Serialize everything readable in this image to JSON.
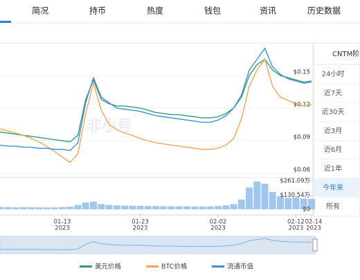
{
  "tabs": [
    "简况",
    "持币",
    "热度",
    "钱包",
    "资讯",
    "历史数据"
  ],
  "range_panel": {
    "title": "CNTM阶",
    "buttons": [
      "24小时",
      "近7天",
      "近30天",
      "近3月",
      "近6月",
      "近1年",
      "今年来",
      "所有"
    ],
    "active": 6
  },
  "watermark": "非小号",
  "chart_data": [
    {
      "type": "line",
      "year": "2023",
      "categories": [
        null,
        null,
        null,
        null,
        null,
        null,
        null,
        null,
        "01-13",
        null,
        null,
        null,
        null,
        null,
        null,
        null,
        null,
        null,
        "01-23",
        null,
        null,
        null,
        null,
        null,
        null,
        null,
        null,
        null,
        "02-02",
        null,
        null,
        null,
        null,
        null,
        null,
        null,
        null,
        null,
        "02-12",
        null,
        "02-14"
      ],
      "ylim": [
        0.06,
        0.18
      ],
      "yticks": [
        {
          "value": 0.06,
          "label": "$0.06"
        },
        {
          "value": 0.09,
          "label": "$0.09"
        },
        {
          "value": 0.12,
          "label": "$0.12"
        },
        {
          "value": 0.15,
          "label": "$0.15"
        }
      ],
      "grid": true,
      "legend": "bottom",
      "series": [
        {
          "name": "美元价格",
          "color": "#3a9a78",
          "values": [
            0.098,
            0.097,
            0.096,
            0.095,
            0.094,
            0.093,
            0.092,
            0.091,
            0.09,
            0.089,
            0.095,
            0.128,
            0.146,
            0.128,
            0.124,
            0.122,
            0.122,
            0.121,
            0.12,
            0.118,
            0.116,
            0.115,
            0.114,
            0.114,
            0.113,
            0.112,
            0.111,
            0.111,
            0.112,
            0.115,
            0.12,
            0.13,
            0.15,
            0.16,
            0.165,
            0.155,
            0.15,
            0.148,
            0.146,
            0.144,
            0.145
          ]
        },
        {
          "name": "BTC价格",
          "color": "#f2a35c",
          "values": [
            0.101,
            0.099,
            0.097,
            0.095,
            0.092,
            0.089,
            0.085,
            0.08,
            0.075,
            0.07,
            0.078,
            0.115,
            0.143,
            0.118,
            0.105,
            0.1,
            0.097,
            0.095,
            0.092,
            0.09,
            0.088,
            0.087,
            0.086,
            0.085,
            0.084,
            0.083,
            0.082,
            0.082,
            0.083,
            0.086,
            0.092,
            0.11,
            0.14,
            0.155,
            0.165,
            0.14,
            0.13,
            0.127,
            0.124,
            0.122,
            0.123
          ]
        },
        {
          "name": "流通市值",
          "color": "#3d8fd6",
          "values": [
            0.086,
            0.085,
            0.085,
            0.084,
            0.084,
            0.083,
            0.083,
            0.082,
            0.082,
            0.081,
            0.088,
            0.125,
            0.148,
            0.13,
            0.125,
            0.12,
            0.119,
            0.118,
            0.117,
            0.115,
            0.113,
            0.112,
            0.111,
            0.11,
            0.109,
            0.108,
            0.107,
            0.107,
            0.109,
            0.113,
            0.12,
            0.132,
            0.155,
            0.165,
            0.175,
            0.158,
            0.151,
            0.147,
            0.145,
            0.143,
            0.144
          ]
        }
      ]
    },
    {
      "type": "bar",
      "color": "#8bb9ea",
      "ylim": [
        0,
        261.09
      ],
      "yticks": [
        {
          "value": 0,
          "label": "$0"
        },
        {
          "value": 130.54,
          "label": "$130.54万"
        },
        {
          "value": 261.09,
          "label": "$261.09万"
        }
      ],
      "values": [
        22,
        20,
        18,
        20,
        19,
        18,
        17,
        18,
        20,
        24,
        40,
        62,
        70,
        48,
        40,
        36,
        34,
        33,
        32,
        30,
        30,
        29,
        28,
        28,
        27,
        26,
        26,
        27,
        30,
        36,
        48,
        90,
        200,
        255,
        235,
        160,
        120,
        105,
        110,
        98,
        95
      ]
    }
  ]
}
